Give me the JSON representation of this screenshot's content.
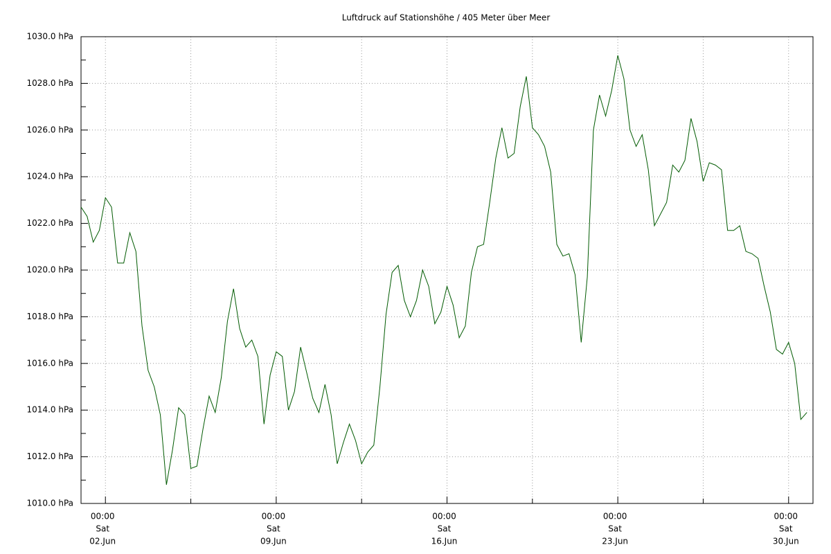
{
  "chart_data": {
    "type": "line",
    "title": "Luftdruck auf Stationshöhe / 405 Meter über Meer",
    "x": [
      "01.Jun 00:00",
      "01.Jun 06:00",
      "01.Jun 12:00",
      "01.Jun 18:00",
      "02.Jun 00:00",
      "02.Jun 06:00",
      "02.Jun 12:00",
      "02.Jun 18:00",
      "03.Jun 00:00",
      "03.Jun 06:00",
      "03.Jun 12:00",
      "03.Jun 18:00",
      "04.Jun 00:00",
      "04.Jun 06:00",
      "04.Jun 12:00",
      "04.Jun 18:00",
      "05.Jun 00:00",
      "05.Jun 06:00",
      "05.Jun 12:00",
      "05.Jun 18:00",
      "06.Jun 00:00",
      "06.Jun 06:00",
      "06.Jun 12:00",
      "06.Jun 18:00",
      "07.Jun 00:00",
      "07.Jun 06:00",
      "07.Jun 12:00",
      "07.Jun 18:00",
      "08.Jun 00:00",
      "08.Jun 06:00",
      "08.Jun 12:00",
      "08.Jun 18:00",
      "09.Jun 00:00",
      "09.Jun 06:00",
      "09.Jun 12:00",
      "09.Jun 18:00",
      "10.Jun 00:00",
      "10.Jun 06:00",
      "10.Jun 12:00",
      "10.Jun 18:00",
      "11.Jun 00:00",
      "11.Jun 06:00",
      "11.Jun 12:00",
      "11.Jun 18:00",
      "12.Jun 00:00",
      "12.Jun 06:00",
      "12.Jun 12:00",
      "12.Jun 18:00",
      "13.Jun 00:00",
      "13.Jun 06:00",
      "13.Jun 12:00",
      "13.Jun 18:00",
      "14.Jun 00:00",
      "14.Jun 06:00",
      "14.Jun 12:00",
      "14.Jun 18:00",
      "15.Jun 00:00",
      "15.Jun 06:00",
      "15.Jun 12:00",
      "15.Jun 18:00",
      "16.Jun 00:00",
      "16.Jun 06:00",
      "16.Jun 12:00",
      "16.Jun 18:00",
      "17.Jun 00:00",
      "17.Jun 06:00",
      "17.Jun 12:00",
      "17.Jun 18:00",
      "18.Jun 00:00",
      "18.Jun 06:00",
      "18.Jun 12:00",
      "18.Jun 18:00",
      "19.Jun 00:00",
      "19.Jun 06:00",
      "19.Jun 12:00",
      "19.Jun 18:00",
      "20.Jun 00:00",
      "20.Jun 06:00",
      "20.Jun 12:00",
      "20.Jun 18:00",
      "21.Jun 00:00",
      "21.Jun 06:00",
      "21.Jun 12:00",
      "21.Jun 18:00",
      "22.Jun 00:00",
      "22.Jun 06:00",
      "22.Jun 12:00",
      "22.Jun 18:00",
      "23.Jun 00:00",
      "23.Jun 06:00",
      "23.Jun 12:00",
      "23.Jun 18:00",
      "24.Jun 00:00",
      "24.Jun 06:00",
      "24.Jun 12:00",
      "24.Jun 18:00",
      "25.Jun 00:00",
      "25.Jun 06:00",
      "25.Jun 12:00",
      "25.Jun 18:00",
      "26.Jun 00:00",
      "26.Jun 06:00",
      "26.Jun 12:00",
      "26.Jun 18:00",
      "27.Jun 00:00",
      "27.Jun 06:00",
      "27.Jun 12:00",
      "27.Jun 18:00",
      "28.Jun 00:00",
      "28.Jun 06:00",
      "28.Jun 12:00",
      "28.Jun 18:00",
      "29.Jun 00:00",
      "29.Jun 06:00",
      "29.Jun 12:00",
      "29.Jun 18:00",
      "30.Jun 00:00",
      "30.Jun 06:00",
      "30.Jun 12:00",
      "30.Jun 18:00"
    ],
    "series": [
      {
        "color": "#005a00",
        "values": [
          1022.7,
          1022.3,
          1021.2,
          1021.7,
          1023.1,
          1022.7,
          1020.3,
          1020.3,
          1021.6,
          1020.8,
          1017.6,
          1015.7,
          1015.0,
          1013.8,
          1010.8,
          1012.3,
          1014.1,
          1013.8,
          1011.5,
          1011.6,
          1013.2,
          1014.6,
          1013.9,
          1015.4,
          1017.8,
          1019.2,
          1017.5,
          1016.7,
          1017.0,
          1016.3,
          1013.4,
          1015.5,
          1016.5,
          1016.3,
          1014.0,
          1014.8,
          1016.7,
          1015.6,
          1014.5,
          1013.9,
          1015.1,
          1013.8,
          1011.7,
          1012.6,
          1013.4,
          1012.7,
          1011.7,
          1012.2,
          1012.5,
          1015.0,
          1018.1,
          1019.9,
          1020.2,
          1018.7,
          1018.0,
          1018.7,
          1020.0,
          1019.3,
          1017.7,
          1018.2,
          1019.3,
          1018.5,
          1017.1,
          1017.6,
          1019.9,
          1021.0,
          1021.1,
          1022.9,
          1024.8,
          1026.1,
          1024.8,
          1025.0,
          1027.0,
          1028.3,
          1026.1,
          1025.8,
          1025.3,
          1024.2,
          1021.1,
          1020.6,
          1020.7,
          1019.8,
          1016.9,
          1019.7,
          1026.0,
          1027.5,
          1026.6,
          1027.7,
          1029.2,
          1028.2,
          1026.0,
          1025.3,
          1025.8,
          1024.3,
          1021.9,
          1022.4,
          1022.9,
          1024.5,
          1024.2,
          1024.7,
          1026.5,
          1025.5,
          1023.8,
          1024.6,
          1024.5,
          1024.3,
          1021.7,
          1021.7,
          1021.9,
          1020.8,
          1020.7,
          1020.5,
          1019.3,
          1018.2,
          1016.6,
          1016.4,
          1016.9,
          1016.0,
          1013.6,
          1013.9
        ]
      }
    ],
    "xlim": [
      "01.Jun 00:00",
      "01.Jul 00:00"
    ],
    "xticks": [
      {
        "value": "02.Jun 00:00",
        "label": [
          "00:00",
          "Sat",
          "02.Jun"
        ]
      },
      {
        "value": "09.Jun 00:00",
        "label": [
          "00:00",
          "Sat",
          "09.Jun"
        ]
      },
      {
        "value": "16.Jun 00:00",
        "label": [
          "00:00",
          "Sat",
          "16.Jun"
        ]
      },
      {
        "value": "23.Jun 00:00",
        "label": [
          "00:00",
          "Sat",
          "23.Jun"
        ]
      },
      {
        "value": "30.Jun 00:00",
        "label": [
          "00:00",
          "Sat",
          "30.Jun"
        ]
      }
    ],
    "xminorticks": [
      "05.Jun 12:00",
      "12.Jun 12:00",
      "19.Jun 12:00",
      "26.Jun 12:00"
    ],
    "ylim": [
      1010,
      1030
    ],
    "yticks": [
      {
        "value": 1010,
        "label": "1010.0 hPa"
      },
      {
        "value": 1012,
        "label": "1012.0 hPa"
      },
      {
        "value": 1014,
        "label": "1014.0 hPa"
      },
      {
        "value": 1016,
        "label": "1016.0 hPa"
      },
      {
        "value": 1018,
        "label": "1018.0 hPa"
      },
      {
        "value": 1020,
        "label": "1020.0 hPa"
      },
      {
        "value": 1022,
        "label": "1022.0 hPa"
      },
      {
        "value": 1024,
        "label": "1024.0 hPa"
      },
      {
        "value": 1026,
        "label": "1026.0 hPa"
      },
      {
        "value": 1028,
        "label": "1028.0 hPa"
      },
      {
        "value": 1030,
        "label": "1030.0 hPa"
      }
    ],
    "yminorticks": [
      1011,
      1013,
      1015,
      1017,
      1019,
      1021,
      1023,
      1025,
      1027,
      1029
    ],
    "grid": true
  }
}
